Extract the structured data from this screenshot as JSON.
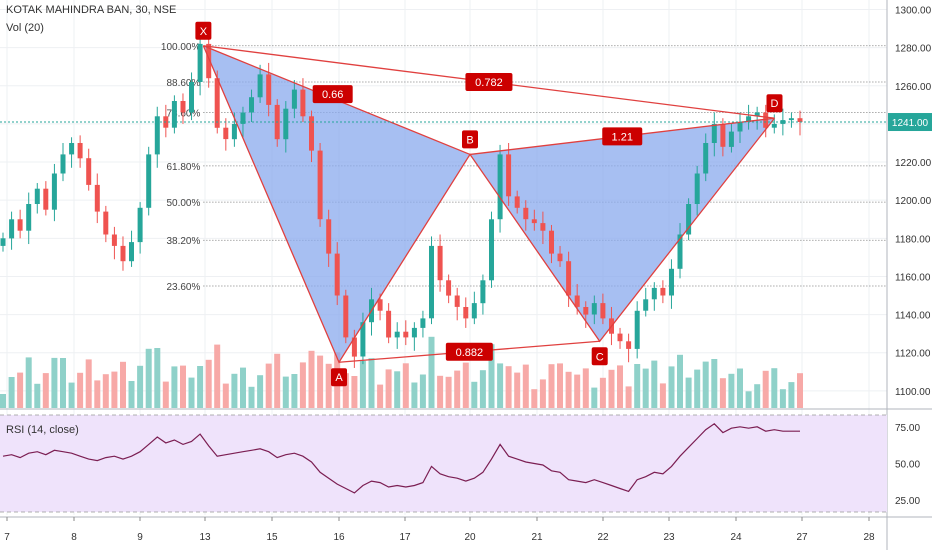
{
  "header": {
    "symbol": "KOTAK MAHINDRA BAN, 30, NSE",
    "volume_label": "Vol (20)"
  },
  "rsi_panel": {
    "label": "RSI (14, close)",
    "ticks": [
      "75.00",
      "50.00",
      "25.00"
    ]
  },
  "colors": {
    "up": "#26a69a",
    "down": "#ef5350",
    "vol_up": "#8fd1c9",
    "vol_down": "#f7a9a7",
    "pattern_fill": "#8aa9ee",
    "pattern_line": "#e0403f",
    "label_bg": "#cc0000",
    "rsi_fill": "#efe3fb",
    "rsi_line": "#7b1e52",
    "price_line": "#26a69a"
  },
  "chart_data": {
    "type": "candlestick",
    "price_axis": {
      "ticks": [
        "1300.00",
        "1280.00",
        "1260.00",
        "1240.00",
        "1220.00",
        "1200.00",
        "1180.00",
        "1160.00",
        "1140.00",
        "1120.00",
        "1100.00"
      ],
      "ylim": [
        1091,
        1305
      ]
    },
    "last_price": "1241.00",
    "x_axis": {
      "ticks": [
        "7",
        "8",
        "9",
        "13",
        "15",
        "16",
        "17",
        "20",
        "21",
        "22",
        "23",
        "24",
        "27",
        "28"
      ]
    },
    "fib_levels": [
      {
        "label": "100.00%",
        "value": 1281
      },
      {
        "label": "88.60%",
        "value": 1262
      },
      {
        "label": "78.60%",
        "value": 1246
      },
      {
        "label": "61.80%",
        "value": 1218
      },
      {
        "label": "50.00%",
        "value": 1199
      },
      {
        "label": "38.20%",
        "value": 1179
      },
      {
        "label": "23.60%",
        "value": 1155
      }
    ],
    "pattern": {
      "points": [
        {
          "label": "X",
          "day": 12.9,
          "price": 1281
        },
        {
          "label": "A",
          "day": 16.0,
          "price": 1115
        },
        {
          "label": "B",
          "day": 20.0,
          "price": 1224
        },
        {
          "label": "C",
          "day": 21.95,
          "price": 1126
        },
        {
          "label": "D",
          "day": 25.75,
          "price": 1243
        }
      ],
      "ratios": [
        {
          "label": "0.66",
          "between": "XA-AB"
        },
        {
          "label": "0.782",
          "between": "X-D"
        },
        {
          "label": "1.21",
          "between": "B-D"
        },
        {
          "label": "0.882",
          "between": "A-C"
        }
      ]
    },
    "closes": [
      1180,
      1190,
      1184,
      1198,
      1206,
      1195,
      1214,
      1224,
      1230,
      1222,
      1208,
      1194,
      1182,
      1176,
      1168,
      1178,
      1196,
      1224,
      1244,
      1238,
      1252,
      1246,
      1262,
      1282,
      1264,
      1238,
      1232,
      1240,
      1246,
      1254,
      1266,
      1250,
      1232,
      1248,
      1258,
      1244,
      1226,
      1190,
      1172,
      1150,
      1128,
      1118,
      1136,
      1148,
      1142,
      1128,
      1131,
      1128,
      1133,
      1138,
      1176,
      1158,
      1150,
      1144,
      1138,
      1146,
      1158,
      1190,
      1224,
      1202,
      1196,
      1190,
      1188,
      1184,
      1172,
      1168,
      1150,
      1144,
      1140,
      1146,
      1138,
      1130,
      1126,
      1122,
      1142,
      1148,
      1154,
      1150,
      1164,
      1182,
      1198,
      1214,
      1230,
      1240,
      1228,
      1236,
      1241,
      1244,
      1246,
      1238,
      1240,
      1242,
      1243,
      1241
    ],
    "rsi": {
      "ylim": [
        17,
        83
      ],
      "values": [
        55,
        56,
        54,
        57,
        58,
        56,
        59,
        58,
        57,
        55,
        53,
        52,
        54,
        55,
        53,
        55,
        58,
        63,
        68,
        64,
        66,
        63,
        65,
        70,
        62,
        55,
        56,
        57,
        58,
        59,
        60,
        58,
        54,
        56,
        57,
        55,
        51,
        44,
        40,
        36,
        33,
        30,
        35,
        38,
        37,
        34,
        35,
        34,
        35,
        37,
        48,
        43,
        41,
        40,
        38,
        40,
        44,
        53,
        63,
        55,
        53,
        51,
        50,
        49,
        45,
        44,
        39,
        38,
        37,
        39,
        37,
        35,
        33,
        31,
        39,
        41,
        44,
        43,
        48,
        55,
        61,
        67,
        73,
        77,
        71,
        74,
        75,
        74,
        75,
        72,
        73,
        72,
        72,
        72
      ]
    }
  }
}
